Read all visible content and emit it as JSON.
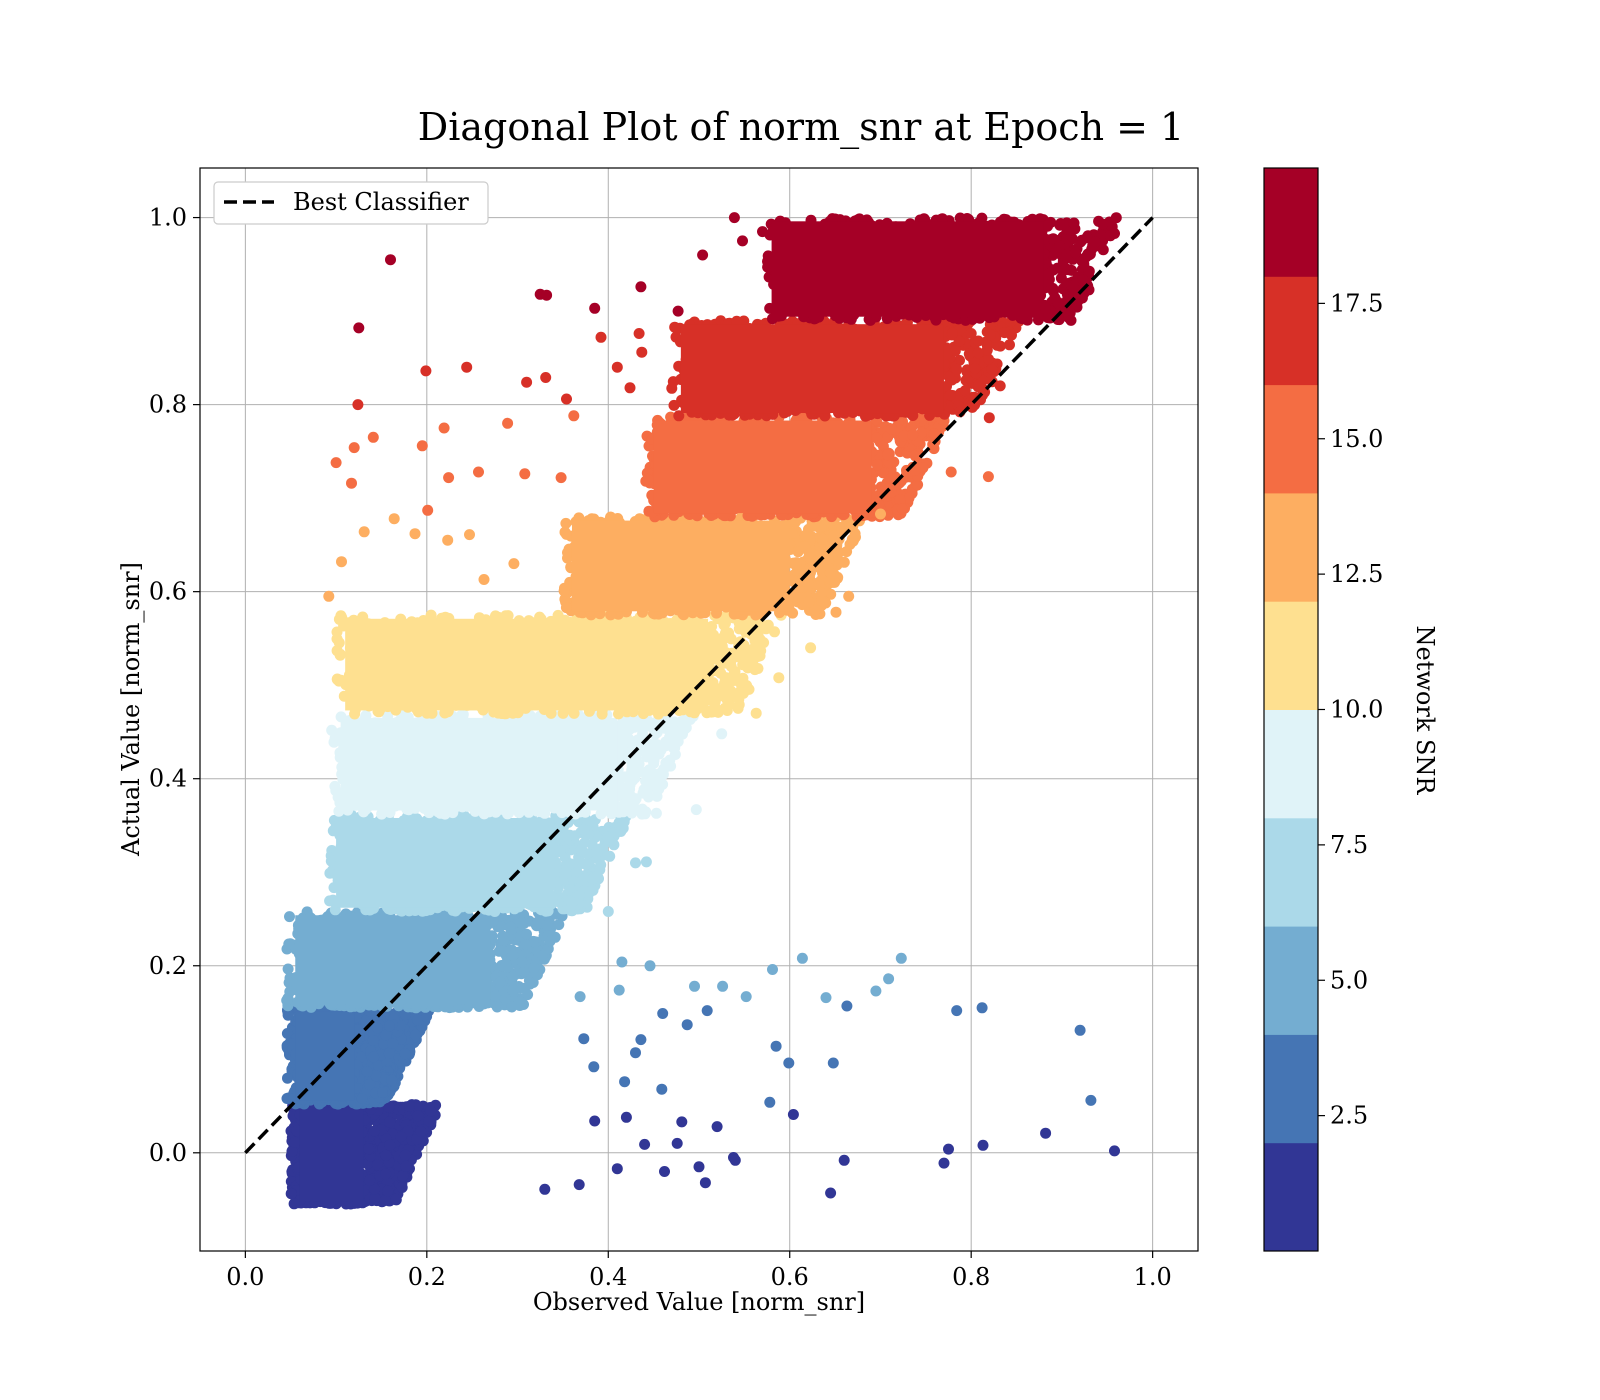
{
  "chart_data": {
    "type": "scatter",
    "title": "Diagonal Plot of norm_snr at Epoch = 1",
    "xlabel": "Observed Value [norm_snr]",
    "ylabel": "Actual Value [norm_snr]",
    "xlim": [
      -0.05,
      1.05
    ],
    "ylim": [
      -0.105,
      1.053
    ],
    "xticks": [
      "0.0",
      "0.2",
      "0.4",
      "0.6",
      "0.8",
      "1.0"
    ],
    "yticks": [
      "0.0",
      "0.2",
      "0.4",
      "0.6",
      "0.8",
      "1.0"
    ],
    "grid": true,
    "legend": {
      "position": "top-left",
      "entries": [
        {
          "label": "Best Classifier",
          "style": "black dashed line"
        }
      ]
    },
    "reference_line": {
      "label": "Best Classifier",
      "x": [
        0.0,
        1.0
      ],
      "y": [
        0.0,
        1.0
      ],
      "color": "#000000"
    },
    "colorbar": {
      "label": "Network SNR",
      "range": [
        0,
        20
      ],
      "ticks": [
        "2.5",
        "5.0",
        "7.5",
        "10.0",
        "12.5",
        "15.0",
        "17.5"
      ],
      "colors": [
        "#313695",
        "#4575b4",
        "#74add1",
        "#abd9e9",
        "#e0f3f8",
        "#fee090",
        "#fdae61",
        "#f46d43",
        "#d73027",
        "#a50026"
      ]
    },
    "bands": [
      {
        "snr_bin": 1,
        "ymin": -0.055,
        "ymax": 0.052,
        "xmin": 0.05,
        "xmax": 0.19,
        "color": "#313695"
      },
      {
        "snr_bin": 2,
        "ymin": 0.052,
        "ymax": 0.155,
        "xmin": 0.045,
        "xmax": 0.18,
        "color": "#4575b4"
      },
      {
        "snr_bin": 3,
        "ymin": 0.155,
        "ymax": 0.258,
        "xmin": 0.045,
        "xmax": 0.33,
        "color": "#74add1"
      },
      {
        "snr_bin": 4,
        "ymin": 0.258,
        "ymax": 0.362,
        "xmin": 0.09,
        "xmax": 0.4,
        "color": "#abd9e9"
      },
      {
        "snr_bin": 5,
        "ymin": 0.362,
        "ymax": 0.469,
        "xmin": 0.095,
        "xmax": 0.47,
        "color": "#e0f3f8"
      },
      {
        "snr_bin": 6,
        "ymin": 0.469,
        "ymax": 0.575,
        "xmin": 0.1,
        "xmax": 0.57,
        "color": "#fee090"
      },
      {
        "snr_bin": 7,
        "ymin": 0.575,
        "ymax": 0.68,
        "xmin": 0.35,
        "xmax": 0.66,
        "color": "#fdae61"
      },
      {
        "snr_bin": 8,
        "ymin": 0.68,
        "ymax": 0.787,
        "xmin": 0.44,
        "xmax": 0.75,
        "color": "#f46d43"
      },
      {
        "snr_bin": 9,
        "ymin": 0.787,
        "ymax": 0.89,
        "xmin": 0.47,
        "xmax": 0.83,
        "color": "#d73027"
      },
      {
        "snr_bin": 10,
        "ymin": 0.89,
        "ymax": 1.0,
        "xmin": 0.57,
        "xmax": 0.94,
        "color": "#a50026"
      }
    ],
    "outliers": [
      {
        "x": 0.16,
        "y": 0.955,
        "bin": 10
      },
      {
        "x": 0.125,
        "y": 0.882,
        "bin": 10
      },
      {
        "x": 0.325,
        "y": 0.918,
        "bin": 10
      },
      {
        "x": 0.332,
        "y": 0.917,
        "bin": 10
      },
      {
        "x": 0.385,
        "y": 0.903,
        "bin": 10
      },
      {
        "x": 0.436,
        "y": 0.926,
        "bin": 10
      },
      {
        "x": 0.477,
        "y": 0.9,
        "bin": 10
      },
      {
        "x": 0.504,
        "y": 0.96,
        "bin": 10
      },
      {
        "x": 0.539,
        "y": 1.0,
        "bin": 10
      },
      {
        "x": 0.548,
        "y": 0.975,
        "bin": 10
      },
      {
        "x": 0.57,
        "y": 0.985,
        "bin": 10
      },
      {
        "x": 0.945,
        "y": 0.993,
        "bin": 10
      },
      {
        "x": 0.958,
        "y": 0.983,
        "bin": 10
      },
      {
        "x": 0.91,
        "y": 0.89,
        "bin": 10
      },
      {
        "x": 0.882,
        "y": 0.903,
        "bin": 10
      },
      {
        "x": 0.124,
        "y": 0.8,
        "bin": 9
      },
      {
        "x": 0.199,
        "y": 0.836,
        "bin": 9
      },
      {
        "x": 0.244,
        "y": 0.84,
        "bin": 9
      },
      {
        "x": 0.31,
        "y": 0.824,
        "bin": 9
      },
      {
        "x": 0.331,
        "y": 0.829,
        "bin": 9
      },
      {
        "x": 0.354,
        "y": 0.806,
        "bin": 9
      },
      {
        "x": 0.392,
        "y": 0.872,
        "bin": 9
      },
      {
        "x": 0.41,
        "y": 0.84,
        "bin": 9
      },
      {
        "x": 0.434,
        "y": 0.876,
        "bin": 9
      },
      {
        "x": 0.437,
        "y": 0.856,
        "bin": 9
      },
      {
        "x": 0.424,
        "y": 0.818,
        "bin": 9
      },
      {
        "x": 0.82,
        "y": 0.786,
        "bin": 9
      },
      {
        "x": 0.832,
        "y": 0.82,
        "bin": 9
      },
      {
        "x": 0.1,
        "y": 0.738,
        "bin": 8
      },
      {
        "x": 0.12,
        "y": 0.754,
        "bin": 8
      },
      {
        "x": 0.141,
        "y": 0.765,
        "bin": 8
      },
      {
        "x": 0.195,
        "y": 0.756,
        "bin": 8
      },
      {
        "x": 0.219,
        "y": 0.775,
        "bin": 8
      },
      {
        "x": 0.289,
        "y": 0.78,
        "bin": 8
      },
      {
        "x": 0.117,
        "y": 0.716,
        "bin": 8
      },
      {
        "x": 0.224,
        "y": 0.722,
        "bin": 8
      },
      {
        "x": 0.257,
        "y": 0.728,
        "bin": 8
      },
      {
        "x": 0.308,
        "y": 0.726,
        "bin": 8
      },
      {
        "x": 0.348,
        "y": 0.722,
        "bin": 8
      },
      {
        "x": 0.201,
        "y": 0.687,
        "bin": 8
      },
      {
        "x": 0.819,
        "y": 0.723,
        "bin": 8
      },
      {
        "x": 0.778,
        "y": 0.728,
        "bin": 8
      },
      {
        "x": 0.362,
        "y": 0.788,
        "bin": 8
      },
      {
        "x": 0.092,
        "y": 0.595,
        "bin": 7
      },
      {
        "x": 0.106,
        "y": 0.632,
        "bin": 7
      },
      {
        "x": 0.131,
        "y": 0.664,
        "bin": 7
      },
      {
        "x": 0.164,
        "y": 0.678,
        "bin": 7
      },
      {
        "x": 0.187,
        "y": 0.662,
        "bin": 7
      },
      {
        "x": 0.223,
        "y": 0.655,
        "bin": 7
      },
      {
        "x": 0.247,
        "y": 0.661,
        "bin": 7
      },
      {
        "x": 0.263,
        "y": 0.613,
        "bin": 7
      },
      {
        "x": 0.296,
        "y": 0.63,
        "bin": 7
      },
      {
        "x": 0.665,
        "y": 0.595,
        "bin": 7
      },
      {
        "x": 0.651,
        "y": 0.578,
        "bin": 7
      },
      {
        "x": 0.7,
        "y": 0.683,
        "bin": 7
      },
      {
        "x": 0.623,
        "y": 0.54,
        "bin": 6
      },
      {
        "x": 0.588,
        "y": 0.508,
        "bin": 6
      },
      {
        "x": 0.563,
        "y": 0.47,
        "bin": 6
      },
      {
        "x": 0.525,
        "y": 0.448,
        "bin": 5
      },
      {
        "x": 0.497,
        "y": 0.367,
        "bin": 5
      },
      {
        "x": 0.453,
        "y": 0.363,
        "bin": 5
      },
      {
        "x": 0.442,
        "y": 0.311,
        "bin": 4
      },
      {
        "x": 0.43,
        "y": 0.31,
        "bin": 4
      },
      {
        "x": 0.4,
        "y": 0.258,
        "bin": 4
      },
      {
        "x": 0.36,
        "y": 0.268,
        "bin": 4
      },
      {
        "x": 0.614,
        "y": 0.208,
        "bin": 3
      },
      {
        "x": 0.723,
        "y": 0.208,
        "bin": 3
      },
      {
        "x": 0.581,
        "y": 0.196,
        "bin": 3
      },
      {
        "x": 0.526,
        "y": 0.178,
        "bin": 3
      },
      {
        "x": 0.495,
        "y": 0.178,
        "bin": 3
      },
      {
        "x": 0.412,
        "y": 0.174,
        "bin": 3
      },
      {
        "x": 0.369,
        "y": 0.167,
        "bin": 3
      },
      {
        "x": 0.552,
        "y": 0.167,
        "bin": 3
      },
      {
        "x": 0.64,
        "y": 0.166,
        "bin": 3
      },
      {
        "x": 0.695,
        "y": 0.173,
        "bin": 3
      },
      {
        "x": 0.709,
        "y": 0.186,
        "bin": 3
      },
      {
        "x": 0.446,
        "y": 0.2,
        "bin": 3
      },
      {
        "x": 0.415,
        "y": 0.204,
        "bin": 3
      },
      {
        "x": 0.784,
        "y": 0.152,
        "bin": 2
      },
      {
        "x": 0.812,
        "y": 0.155,
        "bin": 2
      },
      {
        "x": 0.92,
        "y": 0.131,
        "bin": 2
      },
      {
        "x": 0.932,
        "y": 0.056,
        "bin": 2
      },
      {
        "x": 0.663,
        "y": 0.157,
        "bin": 2
      },
      {
        "x": 0.585,
        "y": 0.114,
        "bin": 2
      },
      {
        "x": 0.599,
        "y": 0.096,
        "bin": 2
      },
      {
        "x": 0.648,
        "y": 0.096,
        "bin": 2
      },
      {
        "x": 0.578,
        "y": 0.054,
        "bin": 2
      },
      {
        "x": 0.509,
        "y": 0.152,
        "bin": 2
      },
      {
        "x": 0.487,
        "y": 0.137,
        "bin": 2
      },
      {
        "x": 0.46,
        "y": 0.149,
        "bin": 2
      },
      {
        "x": 0.436,
        "y": 0.121,
        "bin": 2
      },
      {
        "x": 0.43,
        "y": 0.107,
        "bin": 2
      },
      {
        "x": 0.384,
        "y": 0.092,
        "bin": 2
      },
      {
        "x": 0.418,
        "y": 0.076,
        "bin": 2
      },
      {
        "x": 0.459,
        "y": 0.068,
        "bin": 2
      },
      {
        "x": 0.373,
        "y": 0.122,
        "bin": 2
      },
      {
        "x": 0.604,
        "y": 0.041,
        "bin": 1
      },
      {
        "x": 0.882,
        "y": 0.021,
        "bin": 1
      },
      {
        "x": 0.958,
        "y": 0.002,
        "bin": 1
      },
      {
        "x": 0.813,
        "y": 0.008,
        "bin": 1
      },
      {
        "x": 0.775,
        "y": 0.004,
        "bin": 1
      },
      {
        "x": 0.77,
        "y": -0.011,
        "bin": 1
      },
      {
        "x": 0.66,
        "y": -0.008,
        "bin": 1
      },
      {
        "x": 0.645,
        "y": -0.043,
        "bin": 1
      },
      {
        "x": 0.52,
        "y": 0.028,
        "bin": 1
      },
      {
        "x": 0.538,
        "y": -0.005,
        "bin": 1
      },
      {
        "x": 0.54,
        "y": -0.008,
        "bin": 1
      },
      {
        "x": 0.5,
        "y": -0.015,
        "bin": 1
      },
      {
        "x": 0.476,
        "y": 0.01,
        "bin": 1
      },
      {
        "x": 0.481,
        "y": 0.033,
        "bin": 1
      },
      {
        "x": 0.462,
        "y": -0.02,
        "bin": 1
      },
      {
        "x": 0.44,
        "y": 0.009,
        "bin": 1
      },
      {
        "x": 0.42,
        "y": 0.038,
        "bin": 1
      },
      {
        "x": 0.41,
        "y": -0.017,
        "bin": 1
      },
      {
        "x": 0.385,
        "y": 0.034,
        "bin": 1
      },
      {
        "x": 0.368,
        "y": -0.034,
        "bin": 1
      },
      {
        "x": 0.33,
        "y": -0.039,
        "bin": 1
      },
      {
        "x": 0.507,
        "y": -0.032,
        "bin": 1
      }
    ]
  }
}
